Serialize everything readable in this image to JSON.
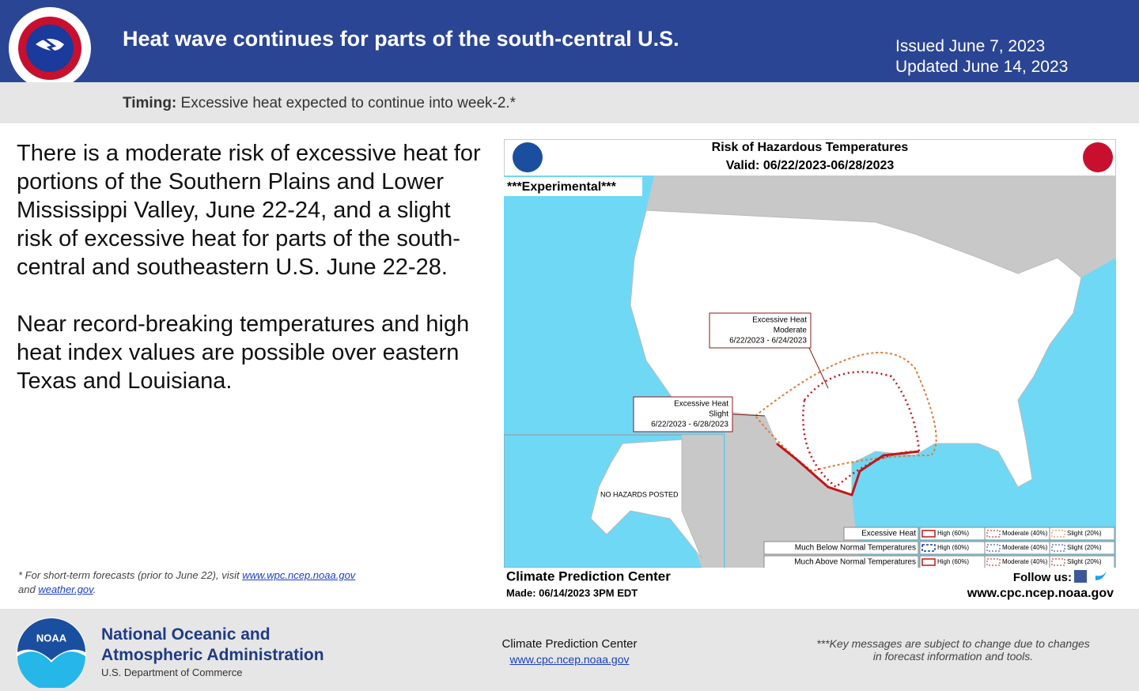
{
  "header": {
    "title": "Heat wave continues for parts of the south-central U.S.",
    "issued": "Issued June 7, 2023",
    "updated": "Updated June 14, 2023"
  },
  "timing": {
    "label": "Timing:",
    "text": "Excessive heat expected to continue into week-2.*"
  },
  "body": {
    "paragraphs": [
      "There is a moderate risk of excessive heat for portions of the Southern Plains and Lower Mississippi Valley, June 22-24, and a slight risk of excessive heat for parts of the south-central and southeastern U.S. June 22-28.",
      "Near record-breaking temperatures and high heat index values are possible over eastern Texas and Louisiana."
    ]
  },
  "footnote": {
    "prefix": "* For short-term forecasts (prior to June 22), visit",
    "link1": "www.wpc.ncep.noaa.gov",
    "joiner": "and",
    "link2": "weather.gov",
    "suffix": "."
  },
  "map": {
    "title": "Risk of Hazardous Temperatures",
    "valid": "Valid: 06/22/2023-06/28/2023",
    "experimental": "***Experimental***",
    "annotations": [
      {
        "lines": [
          "Excessive Heat",
          "Moderate",
          "6/22/2023 - 6/24/2023"
        ]
      },
      {
        "lines": [
          "Excessive Heat",
          "Slight",
          "6/22/2023 - 6/28/2023"
        ]
      }
    ],
    "no_hazards": "NO HAZARDS POSTED",
    "legend": [
      {
        "label": "Excessive Heat",
        "items": [
          "High (60%)",
          "Moderate (40%)",
          "Slight (20%)"
        ]
      },
      {
        "label": "Much Below Normal Temperatures",
        "items": [
          "High (60%)",
          "Moderate (40%)",
          "Slight (20%)"
        ]
      },
      {
        "label": "Much Above Normal Temperatures",
        "items": [
          "High (60%)",
          "Moderate (40%)",
          "Slight (20%)"
        ]
      }
    ],
    "center": "Climate Prediction Center",
    "made": "Made: 06/14/2023 3PM EDT",
    "follow": "Follow us:",
    "url": "www.cpc.ncep.noaa.gov"
  },
  "footer": {
    "org_line1": "National Oceanic and",
    "org_line2": "Atmospheric Administration",
    "dept": "U.S. Department of Commerce",
    "cpc": "Climate Prediction Center",
    "cpc_url": "www.cpc.ncep.noaa.gov",
    "note": "***Key messages are subject to change due to changes in forecast information and tools."
  }
}
